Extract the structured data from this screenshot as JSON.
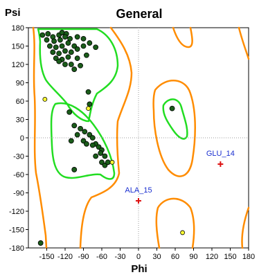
{
  "chart_data": {
    "type": "scatter",
    "title": "General",
    "xlabel": "Phi",
    "ylabel": "Psi",
    "xlim": [
      -180,
      180
    ],
    "ylim": [
      -180,
      180
    ],
    "xticks": [
      "-150",
      "-120",
      "-90",
      "-60",
      "-30",
      "0",
      "30",
      "60",
      "90",
      "120",
      "150",
      "180"
    ],
    "yticks": [
      "180",
      "150",
      "120",
      "90",
      "60",
      "30",
      "0",
      "-30",
      "-60",
      "-90",
      "-120",
      "-150",
      "-180"
    ],
    "reference_lines": {
      "x": 0,
      "y": 0,
      "style": "dotted"
    },
    "contours": {
      "favored_color": "#22dd22",
      "allowed_color": "#ff8c00"
    },
    "series": [
      {
        "role": "favored",
        "color": "#1a5c1a",
        "points": [
          [
            -157,
            168
          ],
          [
            -148,
            170
          ],
          [
            -140,
            165
          ],
          [
            -130,
            168
          ],
          [
            -125,
            172
          ],
          [
            -118,
            170
          ],
          [
            -150,
            160
          ],
          [
            -138,
            158
          ],
          [
            -128,
            160
          ],
          [
            -112,
            162
          ],
          [
            -100,
            165
          ],
          [
            -90,
            162
          ],
          [
            -145,
            150
          ],
          [
            -135,
            148
          ],
          [
            -125,
            150
          ],
          [
            -115,
            155
          ],
          [
            -105,
            150
          ],
          [
            -80,
            155
          ],
          [
            -140,
            140
          ],
          [
            -130,
            138
          ],
          [
            -120,
            142
          ],
          [
            -110,
            140
          ],
          [
            -100,
            145
          ],
          [
            -70,
            148
          ],
          [
            -135,
            130
          ],
          [
            -125,
            128
          ],
          [
            -115,
            132
          ],
          [
            -100,
            130
          ],
          [
            -85,
            135
          ],
          [
            -95,
            118
          ],
          [
            -120,
            120
          ],
          [
            -110,
            120
          ],
          [
            -105,
            112
          ],
          [
            -130,
            125
          ],
          [
            -90,
            150
          ],
          [
            -120,
            165
          ],
          [
            -82,
            75
          ],
          [
            -80,
            55
          ],
          [
            -113,
            42
          ],
          [
            -105,
            20
          ],
          [
            -95,
            15
          ],
          [
            -88,
            10
          ],
          [
            -80,
            5
          ],
          [
            -75,
            0
          ],
          [
            -100,
            5
          ],
          [
            -90,
            -5
          ],
          [
            -85,
            -10
          ],
          [
            -70,
            -10
          ],
          [
            -65,
            -15
          ],
          [
            -60,
            -20
          ],
          [
            -55,
            -30
          ],
          [
            -60,
            -40
          ],
          [
            -55,
            -45
          ],
          [
            -50,
            -40
          ],
          [
            -70,
            -30
          ],
          [
            -110,
            -5
          ],
          [
            -105,
            -52
          ],
          [
            -75,
            -12
          ],
          [
            -62,
            -25
          ],
          [
            55,
            48
          ],
          [
            -160,
            -172
          ]
        ]
      },
      {
        "role": "allowed",
        "color": "#ffff33",
        "points": [
          [
            -153,
            63
          ],
          [
            -82,
            48
          ],
          [
            -43,
            -40
          ],
          [
            72,
            -155
          ]
        ]
      },
      {
        "role": "outlier",
        "color": "#dd1111",
        "points": [
          [
            134,
            -43
          ],
          [
            0,
            -103
          ]
        ],
        "labels": [
          "GLU_14",
          "ALA_15"
        ]
      }
    ]
  }
}
